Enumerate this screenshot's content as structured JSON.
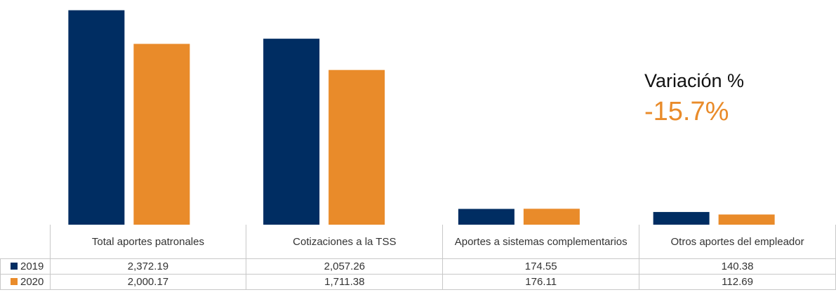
{
  "chart_data": {
    "type": "bar",
    "categories": [
      "Total aportes patronales",
      "Cotizaciones a la TSS",
      "Aportes a sistemas complementarios",
      "Otros aportes del empleador"
    ],
    "series": [
      {
        "name": "2019",
        "color": "#002d62",
        "values": [
          2372.19,
          2057.26,
          174.55,
          140.38
        ],
        "value_labels": [
          "2,372.19",
          "2,057.26",
          "174.55",
          "140.38"
        ]
      },
      {
        "name": "2020",
        "color": "#e98b2a",
        "values": [
          2000.17,
          1711.38,
          176.11,
          112.69
        ],
        "value_labels": [
          "2,000.17",
          "1,711.38",
          "176.11",
          "112.69"
        ]
      }
    ],
    "ylim": [
      0,
      2400
    ],
    "annotation": {
      "label": "Variación %",
      "value": "-15.7%"
    }
  }
}
